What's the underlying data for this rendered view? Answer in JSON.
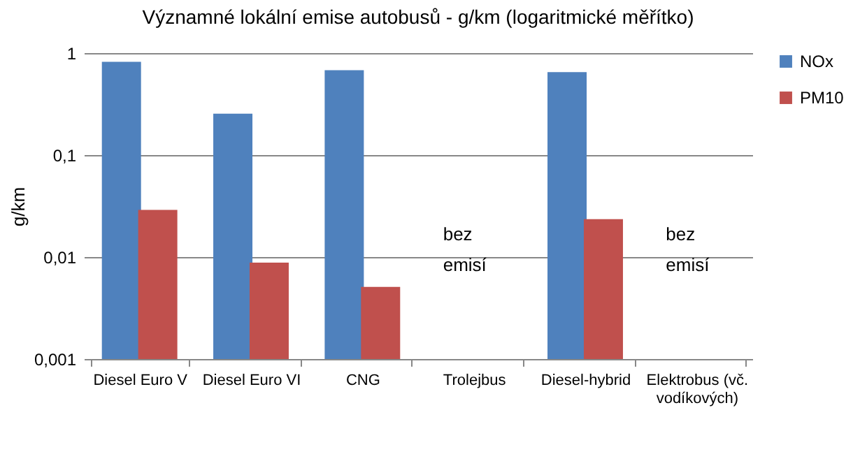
{
  "chart_data": {
    "type": "bar",
    "title": "Významné lokální emise autobusů - g/km (logaritmické měřítko)",
    "ylabel": "g/km",
    "categories": [
      "Diesel Euro V",
      "Diesel Euro VI",
      "CNG",
      "Trolejbus",
      "Diesel-hybrid",
      "Elektrobus (vč. vodíkových)"
    ],
    "series": [
      {
        "name": "NOx",
        "color": "#4f81bd",
        "values": [
          0.82,
          0.255,
          0.68,
          null,
          0.65,
          null
        ]
      },
      {
        "name": "PM10",
        "color": "#c0504d",
        "values": [
          0.029,
          0.0088,
          0.0051,
          null,
          0.0235,
          null
        ]
      }
    ],
    "log": true,
    "ylim": [
      0.001,
      1
    ],
    "yticks": [
      {
        "value": 0.001,
        "label": "0,001"
      },
      {
        "value": 0.01,
        "label": "0,01"
      },
      {
        "value": 0.1,
        "label": "0,1"
      },
      {
        "value": 1,
        "label": "1"
      }
    ],
    "grid": "y",
    "legend": "right",
    "annotations": [
      "bez emisí",
      "bez emisí"
    ]
  }
}
